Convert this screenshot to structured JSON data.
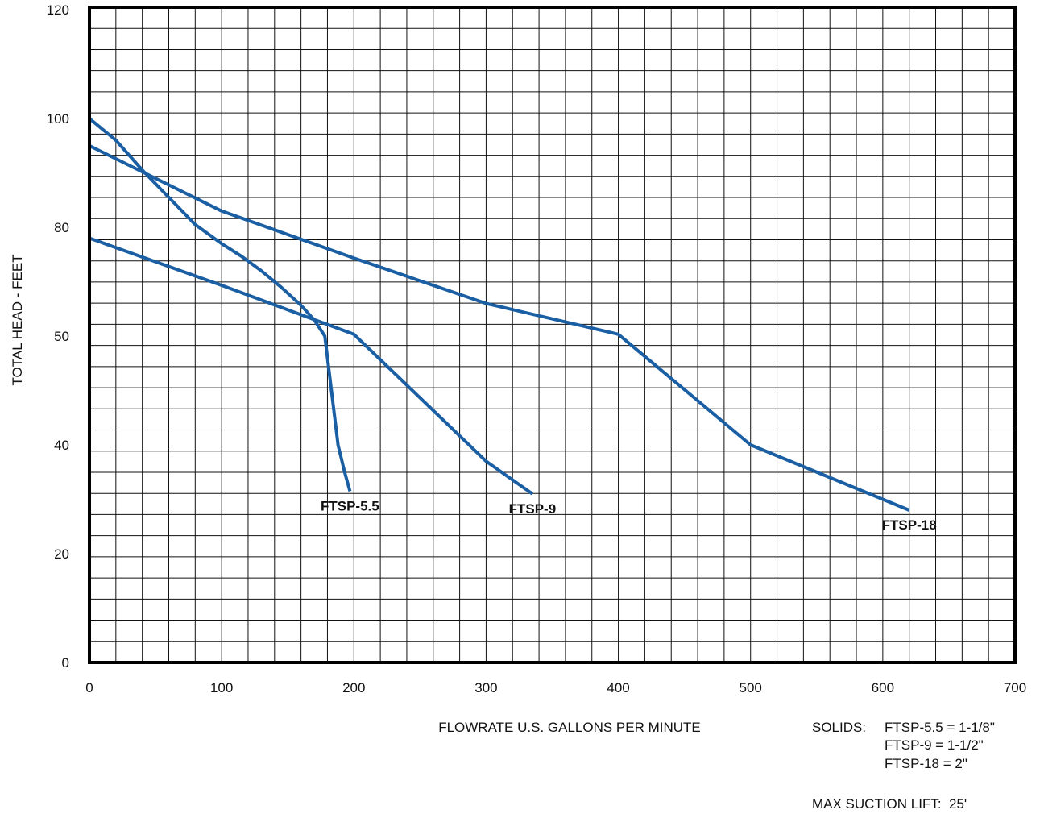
{
  "chart_data": {
    "type": "line",
    "title": "",
    "xlabel": "FLOWRATE U.S. GALLONS PER MINUTE",
    "ylabel": "TOTAL HEAD - FEET",
    "xlim": [
      0,
      700
    ],
    "ylim": [
      0,
      120
    ],
    "x_ticks": [
      "0",
      "100",
      "200",
      "300",
      "400",
      "500",
      "600",
      "700"
    ],
    "y_ticks": [
      "0",
      "20",
      "40",
      "50",
      "80",
      "100",
      "120"
    ],
    "grid": true,
    "line_color": "#1a5ea3",
    "series": [
      {
        "name": "FTSP-5.5",
        "points": [
          [
            0,
            100
          ],
          [
            20,
            96
          ],
          [
            40,
            90.5
          ],
          [
            60,
            85.5
          ],
          [
            80,
            80.5
          ],
          [
            100,
            75.5
          ],
          [
            115,
            72
          ],
          [
            130,
            68
          ],
          [
            145,
            63.5
          ],
          [
            160,
            58.5
          ],
          [
            170,
            54.5
          ],
          [
            178,
            50
          ],
          [
            183,
            45
          ],
          [
            188,
            40
          ],
          [
            193,
            35
          ],
          [
            197,
            31.5
          ]
        ]
      },
      {
        "name": "FTSP-9",
        "points": [
          [
            0,
            77
          ],
          [
            100,
            64
          ],
          [
            200,
            50.5
          ],
          [
            300,
            37
          ],
          [
            335,
            31
          ]
        ]
      },
      {
        "name": "FTSP-18",
        "points": [
          [
            0,
            95
          ],
          [
            100,
            83
          ],
          [
            200,
            71.5
          ],
          [
            300,
            59
          ],
          [
            400,
            50.5
          ],
          [
            500,
            40
          ],
          [
            620,
            28
          ]
        ]
      }
    ]
  },
  "notes": {
    "solids_label": "SOLIDS:",
    "solids_lines": [
      "FTSP-5.5 = 1-1/8\"",
      "FTSP-9 = 1-1/2\"",
      "FTSP-18 = 2\""
    ],
    "max_suction_lift": "MAX SUCTION LIFT:  25'"
  }
}
